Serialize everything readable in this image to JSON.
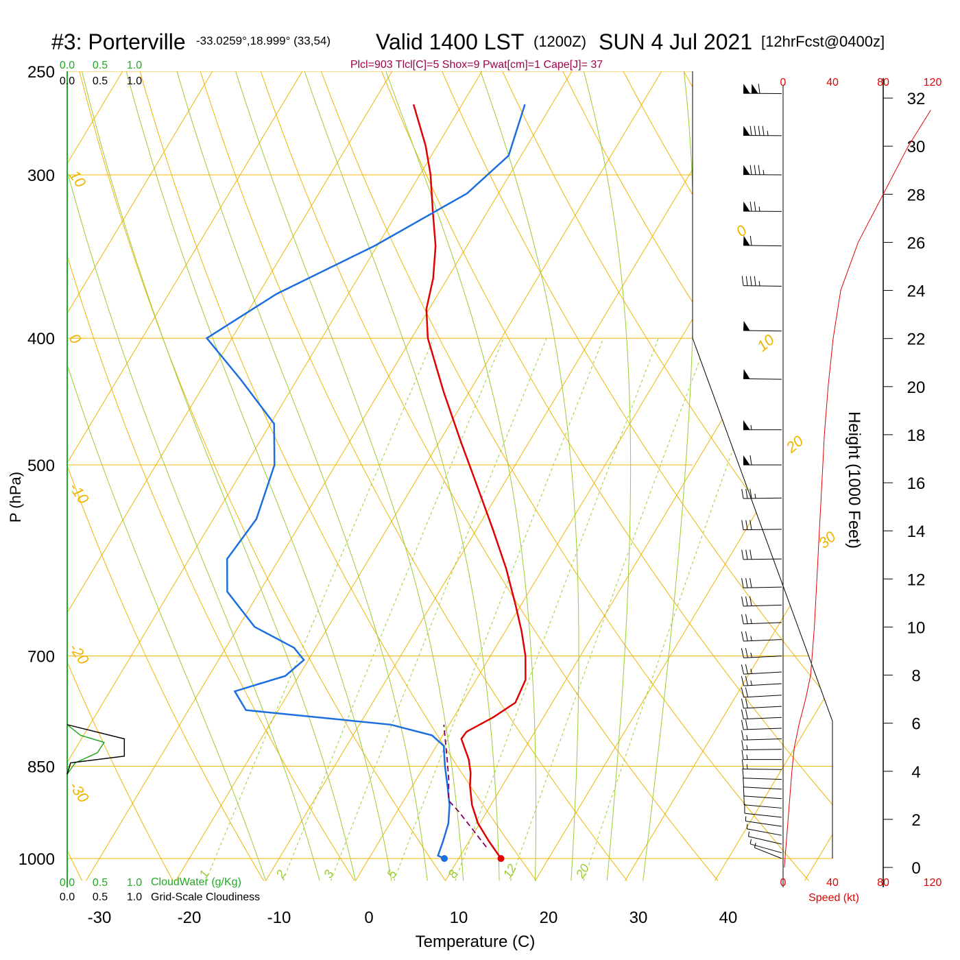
{
  "title": {
    "station": "#3: Porterville",
    "coords": "-33.0259°,18.999° (33,54)",
    "valid": "Valid 1400 LST",
    "zulu": "(1200Z)",
    "date": "SUN 4 Jul 2021",
    "forecast": "[12hrFcst@0400z]"
  },
  "indices": "Plcl=903 Tlcl[C]=5 Shox=9 Pwat[cm]=1 Cape[J]= 37",
  "colors": {
    "temperature": "#e00000",
    "dewpoint": "#1a6ee0",
    "parcel": "#800060",
    "isotherm": "#f0b400",
    "adiabat": "#99cc33",
    "mixing": "#99cc33",
    "cloudwater": "#22aa22",
    "cloudiness": "#000000",
    "speed": "#e00000",
    "indices": "#a0004a"
  },
  "chart_data": {
    "type": "line",
    "subtype": "skew-T log-P sounding",
    "xlabel": "Temperature (C)",
    "ylabel": "P (hPa)",
    "xlim": [
      -34,
      36
    ],
    "ylim_pressure": [
      1030,
      250
    ],
    "x_ticks": [
      "-30",
      "-20",
      "-10",
      "0",
      "10",
      "20",
      "30",
      "40"
    ],
    "x_tick_values": [
      -30,
      -20,
      -10,
      0,
      10,
      20,
      30,
      40
    ],
    "pressure_ticks": [
      "250",
      "300",
      "400",
      "500",
      "700",
      "850",
      "1000"
    ],
    "pressure_tick_values": [
      250,
      300,
      400,
      500,
      700,
      850,
      1000
    ],
    "isotherm_labels": [
      {
        "text": "10",
        "t": 10,
        "p": 300
      },
      {
        "text": "0",
        "t": 0,
        "p": 400
      },
      {
        "text": "-10",
        "t": -10,
        "p": 520
      },
      {
        "text": "-20",
        "t": -20,
        "p": 690
      },
      {
        "text": "-30",
        "t": -30,
        "p": 880
      },
      {
        "text": "0",
        "t": 0,
        "p": 335
      },
      {
        "text": "10",
        "t": 10,
        "p": 410
      },
      {
        "text": "20",
        "t": 20,
        "p": 490
      },
      {
        "text": "30",
        "t": 30,
        "p": 580
      }
    ],
    "mixing_ratio_labels": [
      "1",
      "2",
      "3",
      "5",
      "8",
      "12",
      "20"
    ],
    "mixing_ratio_values": [
      1,
      2,
      3,
      5,
      8,
      12,
      20
    ],
    "temperature_profile": [
      {
        "p": 1000,
        "t": 14.7
      },
      {
        "p": 970,
        "t": 12.2
      },
      {
        "p": 940,
        "t": 9.8
      },
      {
        "p": 910,
        "t": 7.9
      },
      {
        "p": 880,
        "t": 6.4
      },
      {
        "p": 860,
        "t": 5.6
      },
      {
        "p": 840,
        "t": 4.5
      },
      {
        "p": 810,
        "t": 2.3
      },
      {
        "p": 800,
        "t": 2.4
      },
      {
        "p": 780,
        "t": 4.4
      },
      {
        "p": 760,
        "t": 5.9
      },
      {
        "p": 730,
        "t": 5.5
      },
      {
        "p": 700,
        "t": 3.9
      },
      {
        "p": 670,
        "t": 1.8
      },
      {
        "p": 640,
        "t": -0.6
      },
      {
        "p": 600,
        "t": -4.1
      },
      {
        "p": 560,
        "t": -8.2
      },
      {
        "p": 520,
        "t": -12.7
      },
      {
        "p": 480,
        "t": -17.6
      },
      {
        "p": 440,
        "t": -22.8
      },
      {
        "p": 400,
        "t": -28.2
      },
      {
        "p": 380,
        "t": -30.3
      },
      {
        "p": 360,
        "t": -31.6
      },
      {
        "p": 340,
        "t": -33.5
      },
      {
        "p": 320,
        "t": -36.1
      },
      {
        "p": 300,
        "t": -38.8
      },
      {
        "p": 285,
        "t": -41.3
      },
      {
        "p": 265,
        "t": -45.4
      }
    ],
    "dewpoint_profile": [
      {
        "p": 1000,
        "td": 8.4
      },
      {
        "p": 995,
        "td": 7.5
      },
      {
        "p": 970,
        "td": 7.1
      },
      {
        "p": 940,
        "td": 6.5
      },
      {
        "p": 910,
        "td": 5.4
      },
      {
        "p": 880,
        "td": 3.9
      },
      {
        "p": 850,
        "td": 2.3
      },
      {
        "p": 820,
        "td": 0.8
      },
      {
        "p": 805,
        "td": -1.2
      },
      {
        "p": 790,
        "td": -6.5
      },
      {
        "p": 770,
        "td": -23.6
      },
      {
        "p": 745,
        "td": -26.1
      },
      {
        "p": 725,
        "td": -21.5
      },
      {
        "p": 705,
        "td": -20.5
      },
      {
        "p": 690,
        "td": -22.4
      },
      {
        "p": 665,
        "td": -28.2
      },
      {
        "p": 625,
        "td": -33.6
      },
      {
        "p": 590,
        "td": -35.8
      },
      {
        "p": 550,
        "td": -35.2
      },
      {
        "p": 500,
        "td": -36.8
      },
      {
        "p": 465,
        "td": -39.6
      },
      {
        "p": 430,
        "td": -46.3
      },
      {
        "p": 400,
        "td": -52.8
      },
      {
        "p": 370,
        "td": -48.0
      },
      {
        "p": 340,
        "td": -40.3
      },
      {
        "p": 310,
        "td": -33.5
      },
      {
        "p": 290,
        "td": -31.4
      },
      {
        "p": 265,
        "td": -33.0
      }
    ],
    "parcel_profile": [
      {
        "p": 980,
        "t": 12.3
      },
      {
        "p": 950,
        "t": 9.6
      },
      {
        "p": 920,
        "t": 6.8
      },
      {
        "p": 903,
        "t": 5.0
      },
      {
        "p": 870,
        "t": 3.6
      },
      {
        "p": 840,
        "t": 2.1
      },
      {
        "p": 810,
        "t": 0.5
      },
      {
        "p": 790,
        "t": -0.6
      }
    ],
    "surface_points": {
      "t": 14.7,
      "td": 8.4,
      "p": 1000
    },
    "cloud_scale_ticks": [
      "0.0",
      "0.5",
      "1.0"
    ],
    "cloud_scale_values": [
      0,
      0.5,
      1.0
    ],
    "cloudwater_label": "CloudWater (g/Kg)",
    "cloudiness_label": "Grid-Scale Cloudiness",
    "cloudwater_profile": [
      {
        "p": 790,
        "v": 0.0
      },
      {
        "p": 805,
        "v": 0.2
      },
      {
        "p": 815,
        "v": 0.55
      },
      {
        "p": 830,
        "v": 0.45
      },
      {
        "p": 845,
        "v": 0.12
      },
      {
        "p": 862,
        "v": 0.0
      }
    ],
    "cloudiness_profile": [
      {
        "p": 790,
        "v": 0.0
      },
      {
        "p": 810,
        "v": 0.85
      },
      {
        "p": 835,
        "v": 0.85
      },
      {
        "p": 845,
        "v": 0.05
      },
      {
        "p": 862,
        "v": 0.0
      }
    ],
    "wind_speed_label": "Speed (kt)",
    "wind_speed_ticks": [
      "0",
      "40",
      "80",
      "120"
    ],
    "wind_speed_values": [
      0,
      40,
      80,
      120
    ],
    "height_label": "Height (1000 Feet)",
    "height_ticks": [
      "0",
      "2",
      "4",
      "6",
      "8",
      "10",
      "12",
      "14",
      "16",
      "18",
      "20",
      "22",
      "24",
      "26",
      "28",
      "30",
      "32"
    ],
    "height_values": [
      0,
      2,
      4,
      6,
      8,
      10,
      12,
      14,
      16,
      18,
      20,
      22,
      24,
      26,
      28,
      30,
      32
    ],
    "wind_speed_profile": [
      {
        "h": 0,
        "s": 1
      },
      {
        "h": 2,
        "s": 4
      },
      {
        "h": 4,
        "s": 7
      },
      {
        "h": 5,
        "s": 9
      },
      {
        "h": 6,
        "s": 13
      },
      {
        "h": 7,
        "s": 18
      },
      {
        "h": 8,
        "s": 22
      },
      {
        "h": 10,
        "s": 25
      },
      {
        "h": 12,
        "s": 27
      },
      {
        "h": 14,
        "s": 29
      },
      {
        "h": 16,
        "s": 31
      },
      {
        "h": 18,
        "s": 33
      },
      {
        "h": 20,
        "s": 36
      },
      {
        "h": 22,
        "s": 40
      },
      {
        "h": 24,
        "s": 46
      },
      {
        "h": 26,
        "s": 60
      },
      {
        "h": 28,
        "s": 80
      },
      {
        "h": 30,
        "s": 100
      },
      {
        "h": 31.5,
        "s": 118
      }
    ],
    "wind_barbs": [
      {
        "p": 1000,
        "dir": 315,
        "spd": 3
      },
      {
        "p": 990,
        "dir": 305,
        "spd": 4
      },
      {
        "p": 975,
        "dir": 300,
        "spd": 5
      },
      {
        "p": 960,
        "dir": 295,
        "spd": 6
      },
      {
        "p": 945,
        "dir": 290,
        "spd": 7
      },
      {
        "p": 930,
        "dir": 285,
        "spd": 8
      },
      {
        "p": 915,
        "dir": 282,
        "spd": 9
      },
      {
        "p": 900,
        "dir": 280,
        "spd": 10
      },
      {
        "p": 885,
        "dir": 278,
        "spd": 11
      },
      {
        "p": 870,
        "dir": 275,
        "spd": 12
      },
      {
        "p": 855,
        "dir": 272,
        "spd": 13
      },
      {
        "p": 840,
        "dir": 270,
        "spd": 14
      },
      {
        "p": 825,
        "dir": 268,
        "spd": 16
      },
      {
        "p": 810,
        "dir": 266,
        "spd": 17
      },
      {
        "p": 795,
        "dir": 265,
        "spd": 18
      },
      {
        "p": 780,
        "dir": 264,
        "spd": 20
      },
      {
        "p": 765,
        "dir": 263,
        "spd": 21
      },
      {
        "p": 750,
        "dir": 262,
        "spd": 22
      },
      {
        "p": 735,
        "dir": 262,
        "spd": 23
      },
      {
        "p": 720,
        "dir": 262,
        "spd": 24
      },
      {
        "p": 700,
        "dir": 263,
        "spd": 25
      },
      {
        "p": 680,
        "dir": 264,
        "spd": 26
      },
      {
        "p": 660,
        "dir": 265,
        "spd": 27
      },
      {
        "p": 640,
        "dir": 266,
        "spd": 28
      },
      {
        "p": 620,
        "dir": 267,
        "spd": 29
      },
      {
        "p": 590,
        "dir": 268,
        "spd": 30
      },
      {
        "p": 560,
        "dir": 268,
        "spd": 32
      },
      {
        "p": 530,
        "dir": 268,
        "spd": 34
      },
      {
        "p": 500,
        "dir": 270,
        "spd": 60
      },
      {
        "p": 470,
        "dir": 270,
        "spd": 55
      },
      {
        "p": 430,
        "dir": 272,
        "spd": 52
      },
      {
        "p": 395,
        "dir": 272,
        "spd": 50
      },
      {
        "p": 365,
        "dir": 272,
        "spd": 45
      },
      {
        "p": 340,
        "dir": 272,
        "spd": 60
      },
      {
        "p": 320,
        "dir": 271,
        "spd": 75
      },
      {
        "p": 300,
        "dir": 271,
        "spd": 85
      },
      {
        "p": 280,
        "dir": 271,
        "spd": 95
      },
      {
        "p": 260,
        "dir": 271,
        "spd": 110
      }
    ]
  }
}
